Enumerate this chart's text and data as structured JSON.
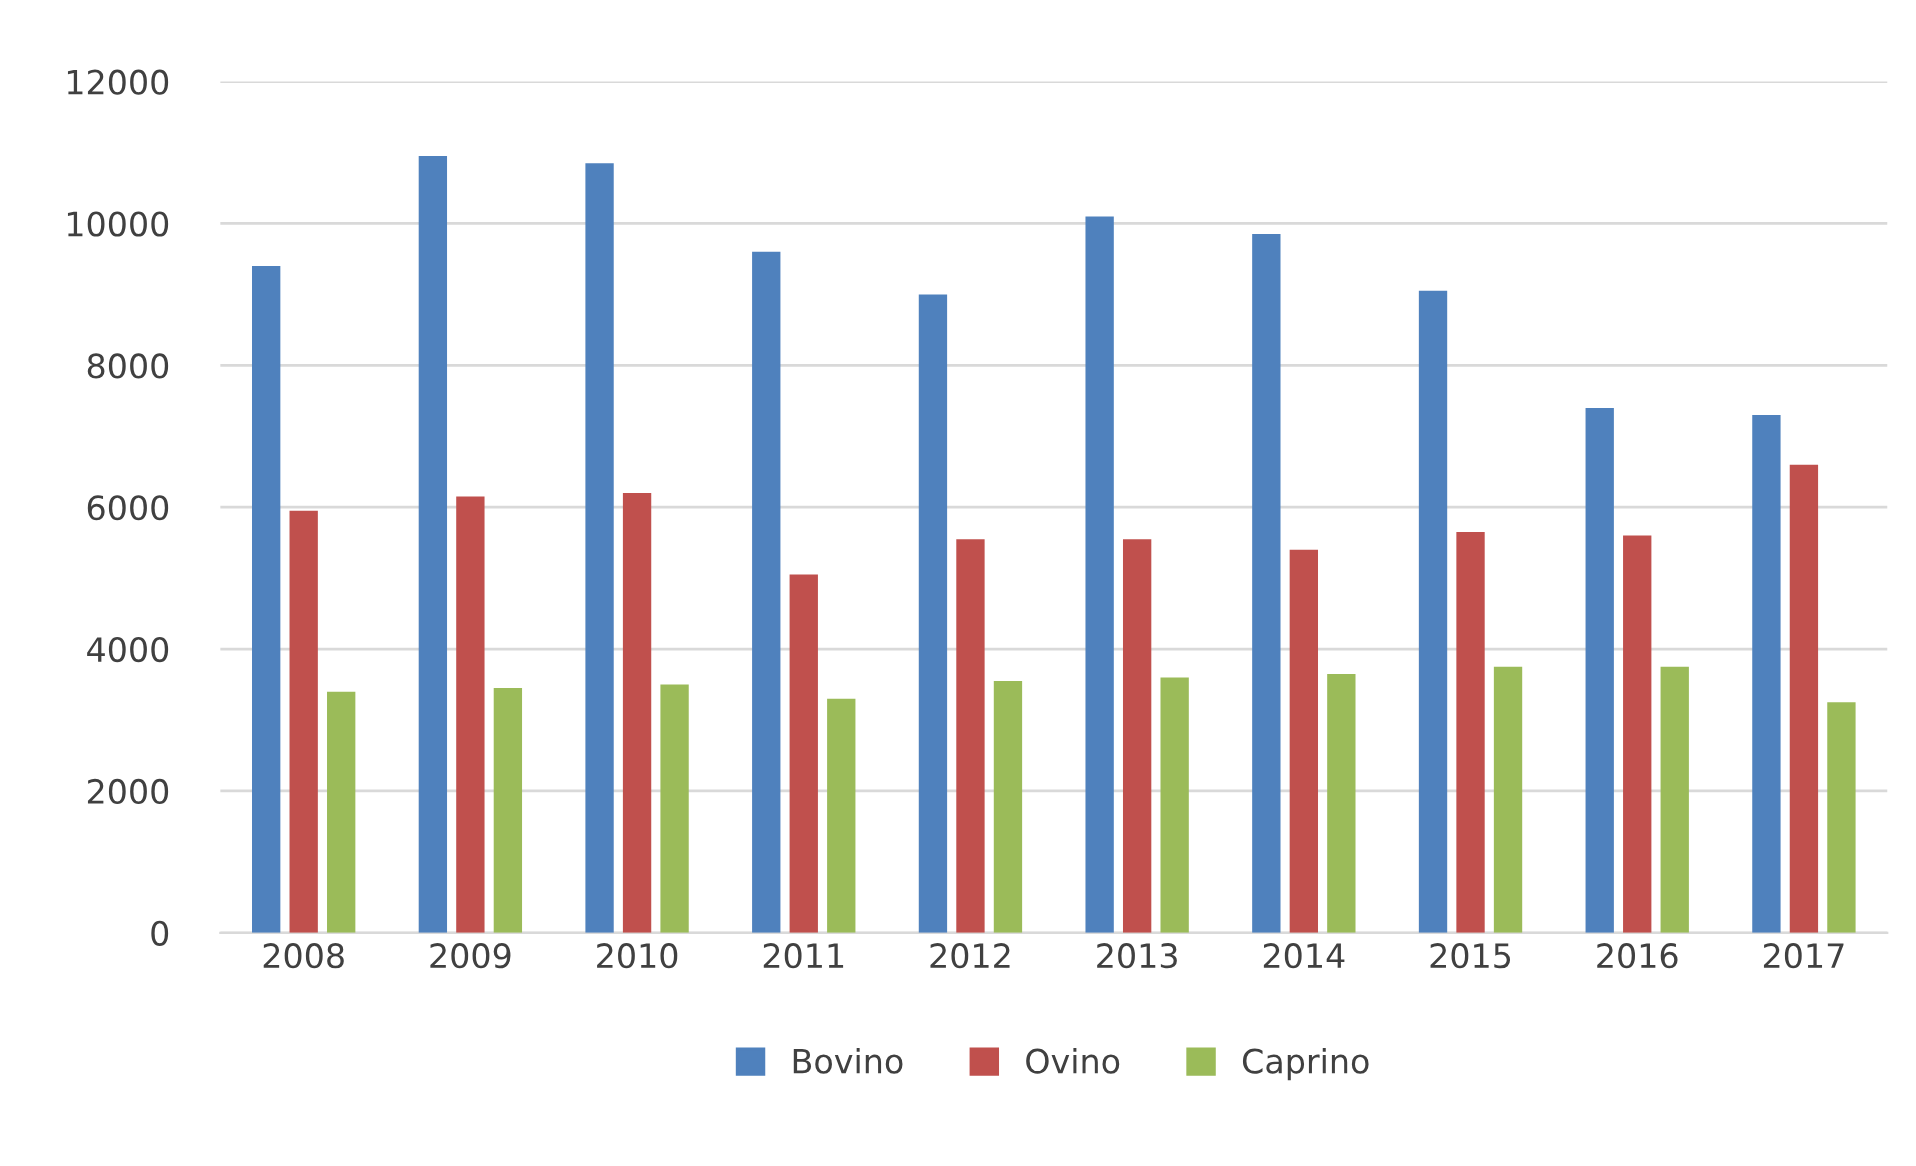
{
  "chart_data": {
    "type": "bar",
    "categories": [
      "2008",
      "2009",
      "2010",
      "2011",
      "2012",
      "2013",
      "2014",
      "2015",
      "2016",
      "2017"
    ],
    "series": [
      {
        "name": "Bovino",
        "color": "#4f81bd",
        "values": [
          9400,
          10950,
          10850,
          9600,
          9000,
          10100,
          9850,
          9050,
          7400,
          7300
        ]
      },
      {
        "name": "Ovino",
        "color": "#c0504d",
        "values": [
          5950,
          6150,
          6200,
          5050,
          5550,
          5550,
          5400,
          5650,
          5600,
          6600
        ]
      },
      {
        "name": "Caprino",
        "color": "#9bbb59",
        "values": [
          3400,
          3450,
          3500,
          3300,
          3550,
          3600,
          3650,
          3750,
          3750,
          3250
        ]
      }
    ],
    "ylim": [
      0,
      12000
    ],
    "yticks": [
      0,
      2000,
      4000,
      6000,
      8000,
      10000,
      12000
    ],
    "grid": "y",
    "legend": "bottom"
  }
}
